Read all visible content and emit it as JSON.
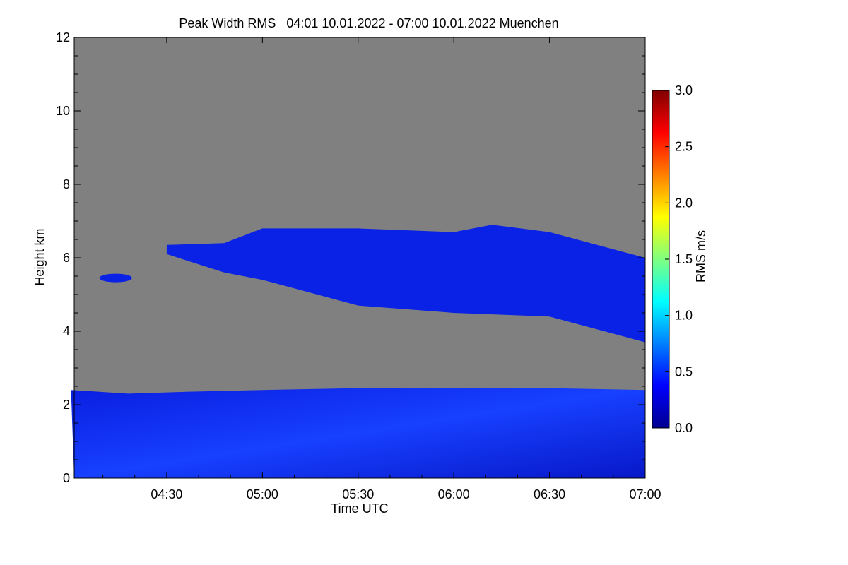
{
  "chart_data": {
    "type": "heatmap",
    "title": "Peak Width RMS   04:01 10.01.2022 - 07:00 10.01.2022 Muenchen",
    "xlabel": "Time UTC",
    "ylabel": "Height km",
    "x_range": [
      "04:01",
      "07:00"
    ],
    "x_ticks": [
      "04:30",
      "05:00",
      "05:30",
      "06:00",
      "06:30",
      "07:00"
    ],
    "ylim": [
      0,
      12
    ],
    "y_ticks": [
      "0",
      "2",
      "4",
      "6",
      "8",
      "10",
      "12"
    ],
    "no_data_color": "#808080",
    "colorbar": {
      "label": "RMS m/s",
      "range": [
        0.0,
        3.0
      ],
      "ticks": [
        "0.0",
        "0.5",
        "1.0",
        "1.5",
        "2.0",
        "2.5",
        "3.0"
      ],
      "colormap": "jet"
    },
    "regions": [
      {
        "description": "boundary layer",
        "top_km": [
          [
            4.0,
            2.4
          ],
          [
            4.3,
            2.3
          ],
          [
            4.6,
            2.35
          ],
          [
            5.0,
            2.4
          ],
          [
            5.5,
            2.45
          ],
          [
            6.0,
            2.45
          ],
          [
            6.5,
            2.45
          ],
          [
            7.0,
            2.4
          ]
        ],
        "typical_rms": 0.35
      },
      {
        "description": "upper cloud layer",
        "top_km": [
          [
            4.5,
            6.35
          ],
          [
            4.8,
            6.4
          ],
          [
            5.0,
            6.8
          ],
          [
            5.5,
            6.8
          ],
          [
            6.0,
            6.7
          ],
          [
            6.2,
            6.9
          ],
          [
            6.5,
            6.7
          ],
          [
            7.0,
            6.0
          ]
        ],
        "base_km": [
          [
            4.5,
            6.1
          ],
          [
            4.8,
            5.6
          ],
          [
            5.0,
            5.4
          ],
          [
            5.5,
            4.7
          ],
          [
            6.0,
            4.5
          ],
          [
            6.5,
            4.4
          ],
          [
            7.0,
            3.7
          ]
        ],
        "typical_rms": 0.25
      },
      {
        "description": "isolated cloud patch",
        "time": "04:14",
        "height_km": 5.45,
        "typical_rms": 0.25
      }
    ]
  }
}
